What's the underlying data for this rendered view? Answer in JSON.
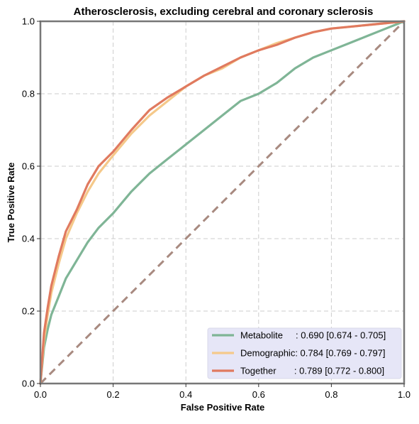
{
  "chart_data": {
    "type": "line",
    "title": "Atherosclerosis, excluding cerebral and coronary sclerosis",
    "xlabel": "False Positive Rate",
    "ylabel": "True Positive Rate",
    "xlim": [
      0,
      1
    ],
    "ylim": [
      0,
      1
    ],
    "xticks": [
      "0.0",
      "0.2",
      "0.4",
      "0.6",
      "0.8",
      "1.0"
    ],
    "yticks": [
      "0.0",
      "0.2",
      "0.4",
      "0.6",
      "0.8",
      "1.0"
    ],
    "grid": true,
    "legend_position": "lower-right",
    "diagonal_color": "#a88a80",
    "series": [
      {
        "name": "Metabolite",
        "legend_label": "Metabolite     : 0.690 [0.674 - 0.705]",
        "color": "#7fb596",
        "x": [
          0,
          0.01,
          0.02,
          0.03,
          0.05,
          0.07,
          0.1,
          0.13,
          0.16,
          0.2,
          0.25,
          0.3,
          0.35,
          0.4,
          0.45,
          0.5,
          0.55,
          0.6,
          0.65,
          0.7,
          0.75,
          0.8,
          0.85,
          0.9,
          0.95,
          1.0
        ],
        "y": [
          0,
          0.1,
          0.15,
          0.19,
          0.24,
          0.29,
          0.34,
          0.39,
          0.43,
          0.47,
          0.53,
          0.58,
          0.62,
          0.66,
          0.7,
          0.74,
          0.78,
          0.8,
          0.83,
          0.87,
          0.9,
          0.92,
          0.94,
          0.96,
          0.98,
          1.0
        ]
      },
      {
        "name": "Demographic",
        "legend_label": "Demographic: 0.784 [0.769 - 0.797]",
        "color": "#f5c98a",
        "x": [
          0,
          0.01,
          0.02,
          0.03,
          0.05,
          0.07,
          0.1,
          0.13,
          0.16,
          0.2,
          0.25,
          0.3,
          0.35,
          0.4,
          0.45,
          0.5,
          0.55,
          0.6,
          0.65,
          0.7,
          0.75,
          0.8,
          0.85,
          0.9,
          0.95,
          1.0
        ],
        "y": [
          0,
          0.12,
          0.19,
          0.25,
          0.33,
          0.4,
          0.47,
          0.53,
          0.58,
          0.63,
          0.69,
          0.74,
          0.78,
          0.82,
          0.85,
          0.87,
          0.9,
          0.92,
          0.94,
          0.955,
          0.97,
          0.98,
          0.985,
          0.99,
          0.995,
          1.0
        ]
      },
      {
        "name": "Together",
        "legend_label": "Together       : 0.789 [0.772 - 0.800]",
        "color": "#e07a5f",
        "x": [
          0,
          0.01,
          0.02,
          0.03,
          0.05,
          0.07,
          0.1,
          0.13,
          0.16,
          0.2,
          0.25,
          0.3,
          0.35,
          0.4,
          0.45,
          0.5,
          0.55,
          0.6,
          0.65,
          0.7,
          0.75,
          0.8,
          0.85,
          0.9,
          0.95,
          1.0
        ],
        "y": [
          0,
          0.14,
          0.21,
          0.27,
          0.35,
          0.42,
          0.48,
          0.55,
          0.6,
          0.64,
          0.7,
          0.755,
          0.79,
          0.82,
          0.85,
          0.875,
          0.9,
          0.92,
          0.935,
          0.955,
          0.97,
          0.98,
          0.985,
          0.99,
          0.995,
          1.0
        ]
      }
    ]
  }
}
